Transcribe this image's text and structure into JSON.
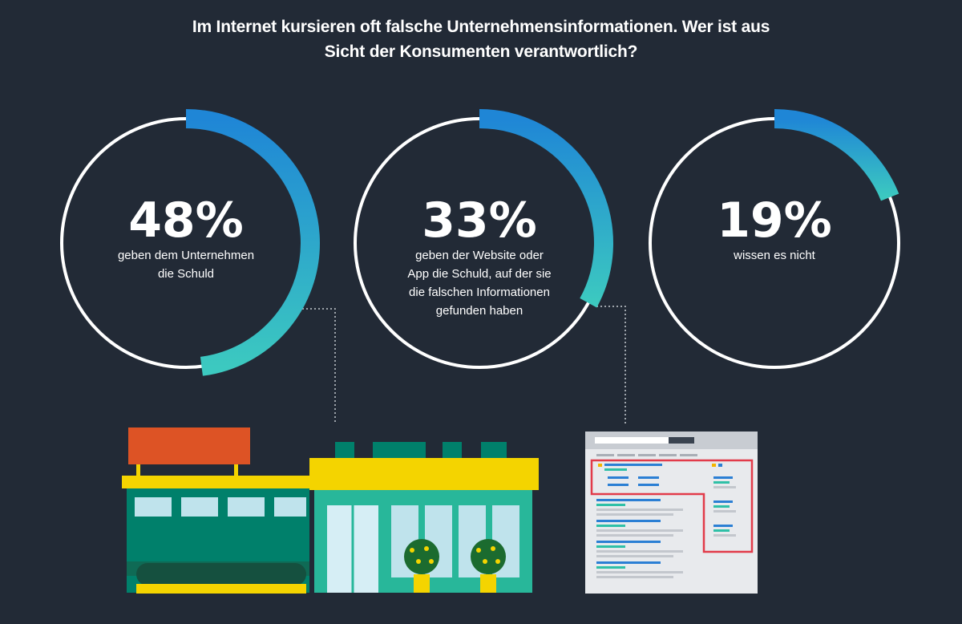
{
  "title": {
    "line1": "Im Internet kursieren oft falsche Unternehmensinformationen. Wer ist aus",
    "line2": "Sicht der Konsumenten verantwortlich?"
  },
  "colors": {
    "background": "#222a36",
    "ring": "#ffffff",
    "arc_start": "#1f86d6",
    "arc_end": "#3cc9c0"
  },
  "chart_data": {
    "type": "pie",
    "title": "Im Internet kursieren oft falsche Unternehmensinformationen. Wer ist aus Sicht der Konsumenten verantwortlich?",
    "unit": "%",
    "items": [
      {
        "value": 48,
        "display": "48%",
        "label_lines": [
          "geben dem Unternehmen",
          "die Schuld"
        ]
      },
      {
        "value": 33,
        "display": "33%",
        "label_lines": [
          "geben der Website oder",
          "App die Schuld, auf der sie",
          "die falschen Informationen",
          "gefunden haben"
        ]
      },
      {
        "value": 19,
        "display": "19%",
        "label_lines": [
          "wissen es nicht"
        ]
      }
    ]
  },
  "illustrations": {
    "store": "storefront-icon",
    "website": "search-results-page-icon"
  }
}
